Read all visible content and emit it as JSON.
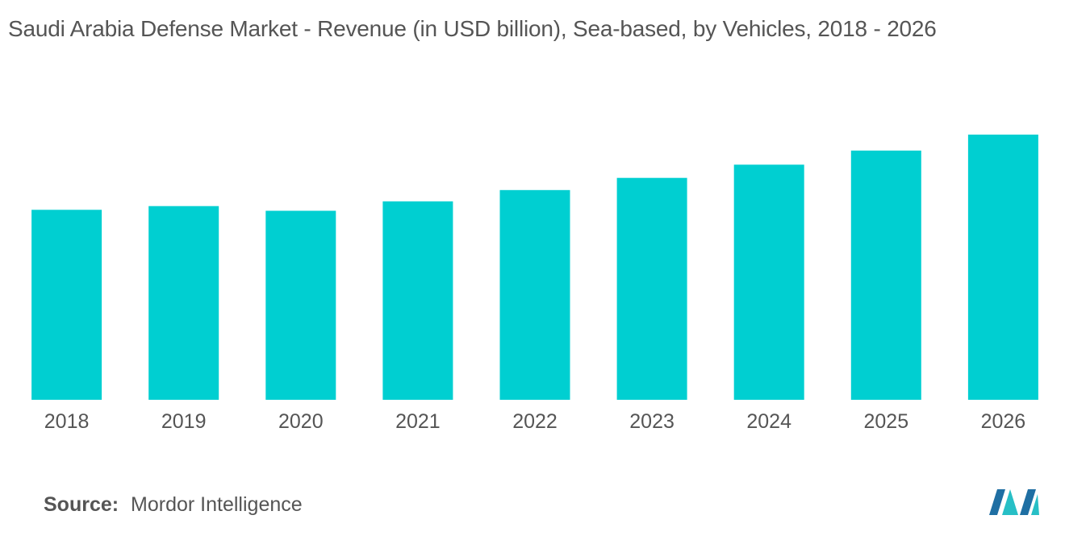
{
  "header": {
    "title": "Saudi Arabia Defense Market - Revenue (in USD billion), Sea-based, by Vehicles, 2018 - 2026"
  },
  "chart_data": {
    "type": "bar",
    "title": "Saudi Arabia Defense Market - Revenue (in USD billion), Sea-based, by Vehicles, 2018 - 2026",
    "xlabel": "",
    "ylabel": "",
    "categories": [
      "2018",
      "2019",
      "2020",
      "2021",
      "2022",
      "2023",
      "2024",
      "2025",
      "2026"
    ],
    "values": [
      2.02,
      2.06,
      2.01,
      2.11,
      2.23,
      2.36,
      2.5,
      2.65,
      2.82
    ],
    "ylim": [
      0,
      3.0
    ],
    "grid": false,
    "legend": "none",
    "bar_color": "#00cfd1"
  },
  "footer": {
    "source_label": "Source:",
    "source_value": "Mordor Intelligence"
  },
  "logo": {
    "icon": "mordor-intelligence-logo",
    "colors": [
      "#1f6fa3",
      "#27bfc6"
    ]
  }
}
